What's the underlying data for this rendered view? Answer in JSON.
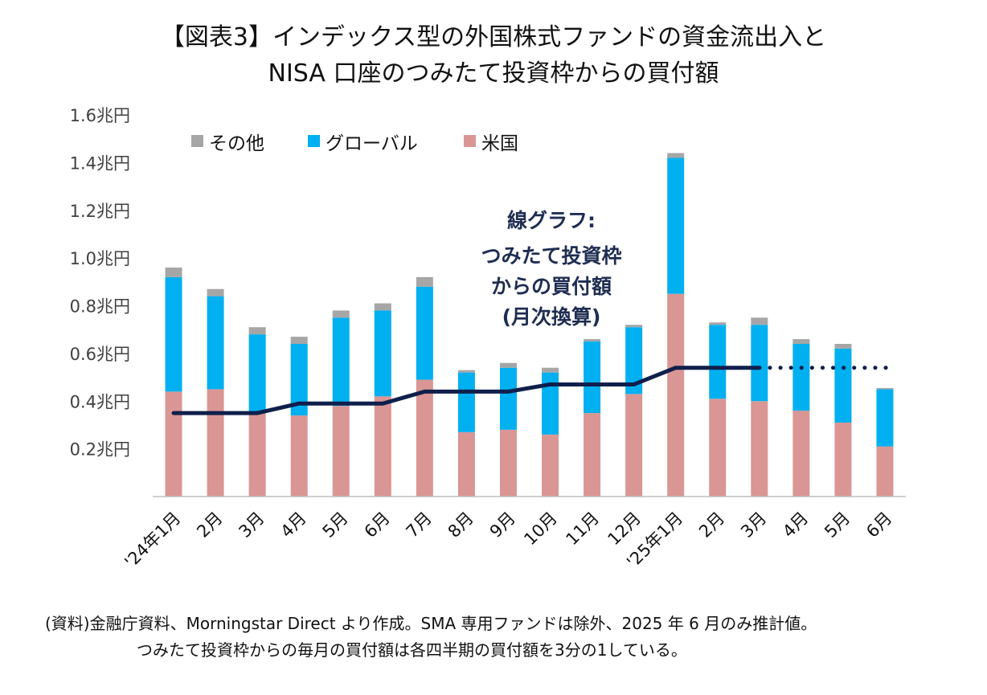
{
  "chart_data": {
    "type": "bar",
    "stacked": true,
    "title": [
      "【図表3】インデックス型の外国株式ファンドの資金流出入と",
      "NISA 口座のつみたて投資枠からの買付額"
    ],
    "categories": [
      "'24年1月",
      "2月",
      "3月",
      "4月",
      "5月",
      "6月",
      "7月",
      "8月",
      "9月",
      "10月",
      "11月",
      "12月",
      "'25年1月",
      "2月",
      "3月",
      "4月",
      "5月",
      "6月"
    ],
    "series": [
      {
        "name": "米国",
        "color": "#d99694",
        "values": [
          0.44,
          0.45,
          0.35,
          0.34,
          0.38,
          0.42,
          0.49,
          0.27,
          0.28,
          0.26,
          0.35,
          0.43,
          0.85,
          0.41,
          0.4,
          0.36,
          0.31,
          0.21
        ]
      },
      {
        "name": "グローバル",
        "color": "#00b0f0",
        "values": [
          0.48,
          0.39,
          0.33,
          0.3,
          0.37,
          0.36,
          0.39,
          0.25,
          0.26,
          0.26,
          0.3,
          0.28,
          0.57,
          0.31,
          0.32,
          0.28,
          0.31,
          0.24
        ]
      },
      {
        "name": "その他",
        "color": "#a6a6a6",
        "values": [
          0.04,
          0.03,
          0.03,
          0.03,
          0.03,
          0.03,
          0.04,
          0.01,
          0.02,
          0.02,
          0.01,
          0.01,
          0.02,
          0.01,
          0.03,
          0.02,
          0.02,
          0.005
        ]
      }
    ],
    "line": {
      "name": "つみたて投資枠からの買付額(月次換算)",
      "color": "#0f1f4b",
      "values": [
        0.35,
        0.35,
        0.35,
        0.39,
        0.39,
        0.39,
        0.44,
        0.44,
        0.44,
        0.47,
        0.47,
        0.47,
        0.54,
        0.54,
        0.54,
        0.54,
        0.54,
        0.54
      ],
      "solid_until_index": 14,
      "dotted_until_index": 17
    },
    "ylim": [
      0,
      1.6
    ],
    "yticks": [
      0.2,
      0.4,
      0.6,
      0.8,
      1.0,
      1.2,
      1.4,
      1.6
    ],
    "ytick_labels": [
      "0.2兆円",
      "0.4兆円",
      "0.6兆円",
      "0.8兆円",
      "1.0兆円",
      "1.2兆円",
      "1.4兆円",
      "1.6兆円"
    ],
    "legend": {
      "placement": "top-left",
      "order": [
        "その他",
        "グローバル",
        "米国"
      ]
    },
    "annotation": [
      "線グラフ:",
      "つみたて投資枠",
      "からの買付額",
      "(月次換算)"
    ],
    "note": [
      "(資料)金融庁資料、Morningstar Direct より作成。SMA 専用ファンドは除外、2025 年 6 月のみ推計値。",
      "つみたて投資枠からの毎月の買付額は各四半期の買付額を3分の1している。"
    ],
    "xlabel": "",
    "ylabel": "",
    "grid": false
  }
}
